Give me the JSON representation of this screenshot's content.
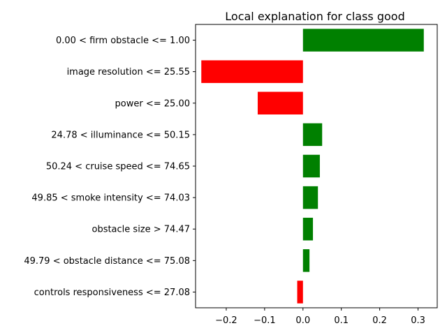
{
  "chart_data": {
    "type": "bar",
    "orientation": "horizontal",
    "title": "Local explanation for class good",
    "xlabel": "",
    "ylabel": "",
    "xlim": [
      -0.28,
      0.35
    ],
    "x_ticks": [
      -0.2,
      -0.1,
      0.0,
      0.1,
      0.2,
      0.3
    ],
    "x_tick_labels": [
      "−0.2",
      "−0.1",
      "0.0",
      "0.1",
      "0.2",
      "0.3"
    ],
    "grid": false,
    "legend": "none",
    "colors": {
      "positive": "#008000",
      "negative": "#ff0000"
    },
    "categories": [
      "0.00 < firm obstacle <= 1.00",
      "image resolution <= 25.55",
      "power <= 25.00",
      "24.78 < illuminance <= 50.15",
      "50.24 < cruise speed <= 74.65",
      "49.85 < smoke intensity <= 74.03",
      "obstacle size > 74.47",
      "49.79 < obstacle distance <= 75.08",
      "controls responsiveness <= 27.08"
    ],
    "values": [
      0.315,
      -0.265,
      -0.118,
      0.05,
      0.044,
      0.039,
      0.026,
      0.017,
      -0.015
    ]
  }
}
